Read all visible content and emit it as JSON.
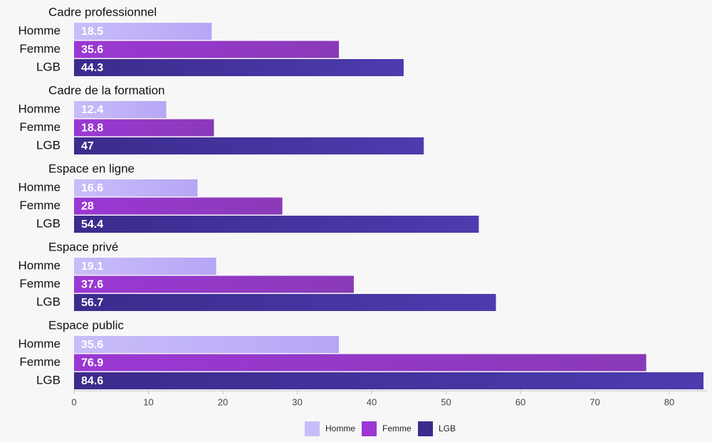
{
  "chart_data": {
    "type": "bar",
    "orientation": "horizontal",
    "title": "",
    "xlabel": "",
    "ylabel": "",
    "xlim": [
      0,
      85
    ],
    "x_ticks": [
      0,
      10,
      20,
      30,
      40,
      50,
      60,
      70,
      80
    ],
    "grid": false,
    "legend_position": "bottom-center",
    "series": [
      {
        "name": "Homme",
        "color": "#c9bdf9",
        "color_end": "#b7a6f6"
      },
      {
        "name": "Femme",
        "color": "#9b38d4",
        "color_end": "#8a3ab8"
      },
      {
        "name": "LGB",
        "color": "#3c2b8c",
        "color_end": "#4c3cae"
      }
    ],
    "groups": [
      {
        "name": "Cadre professionnel",
        "categories": [
          "Homme",
          "Femme",
          "LGB"
        ],
        "values": [
          18.5,
          35.6,
          44.3
        ]
      },
      {
        "name": "Cadre de la formation",
        "categories": [
          "Homme",
          "Femme",
          "LGB"
        ],
        "values": [
          12.4,
          18.8,
          47
        ]
      },
      {
        "name": "Espace en ligne",
        "categories": [
          "Homme",
          "Femme",
          "LGB"
        ],
        "values": [
          16.6,
          28,
          54.4
        ]
      },
      {
        "name": "Espace privé",
        "categories": [
          "Homme",
          "Femme",
          "LGB"
        ],
        "values": [
          19.1,
          37.6,
          56.7
        ]
      },
      {
        "name": "Espace public",
        "categories": [
          "Homme",
          "Femme",
          "LGB"
        ],
        "values": [
          35.6,
          76.9,
          84.6
        ]
      }
    ]
  }
}
